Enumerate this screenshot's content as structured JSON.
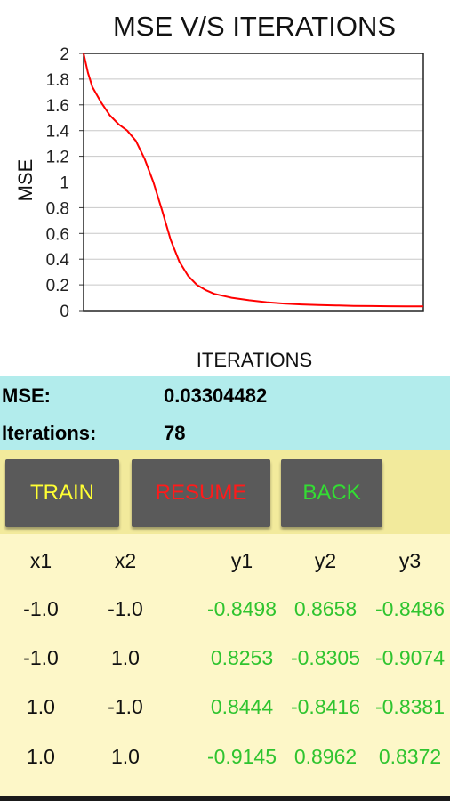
{
  "chart_data": {
    "type": "line",
    "title": "MSE V/S ITERATIONS",
    "xlabel": "ITERATIONS",
    "ylabel": "MSE",
    "ylim": [
      0,
      2
    ],
    "yticks": [
      "0",
      "0.2",
      "0.4",
      "0.6",
      "0.8",
      "1",
      "1.2",
      "1.4",
      "1.6",
      "1.8",
      "2"
    ],
    "grid": true,
    "series": [
      {
        "color": "#ff0000",
        "x": [
          0,
          1,
          2,
          4,
          6,
          8,
          10,
          12,
          14,
          16,
          18,
          20,
          22,
          24,
          26,
          28,
          30,
          34,
          38,
          42,
          46,
          50,
          54,
          58,
          62,
          66,
          70,
          74,
          78
        ],
        "values": [
          2.0,
          1.85,
          1.74,
          1.62,
          1.52,
          1.45,
          1.4,
          1.32,
          1.18,
          1.0,
          0.78,
          0.55,
          0.38,
          0.27,
          0.2,
          0.16,
          0.13,
          0.1,
          0.08,
          0.065,
          0.055,
          0.048,
          0.043,
          0.04,
          0.037,
          0.035,
          0.034,
          0.0333,
          0.033
        ]
      }
    ]
  },
  "stats": {
    "mse_label": "MSE:",
    "mse_value": "0.03304482",
    "iterations_label": "Iterations:",
    "iterations_value": "78"
  },
  "buttons": {
    "train": "TRAIN",
    "resume": "RESUME",
    "back": "BACK"
  },
  "colors": {
    "stats_bg": "#b2ecec",
    "buttons_bg": "#f2ea9c",
    "table_bg": "#fdf7c8",
    "output_text": "#2fc42f"
  },
  "table": {
    "headers": [
      "x1",
      "x2",
      "y1",
      "y2",
      "y3"
    ],
    "rows": [
      [
        "-1.0",
        "-1.0",
        "-0.8498",
        "0.8658",
        "-0.8486"
      ],
      [
        "-1.0",
        "1.0",
        "0.8253",
        "-0.8305",
        "-0.9074"
      ],
      [
        "1.0",
        "-1.0",
        "0.8444",
        "-0.8416",
        "-0.8381"
      ],
      [
        "1.0",
        "1.0",
        "-0.9145",
        "0.8962",
        "0.8372"
      ]
    ]
  }
}
